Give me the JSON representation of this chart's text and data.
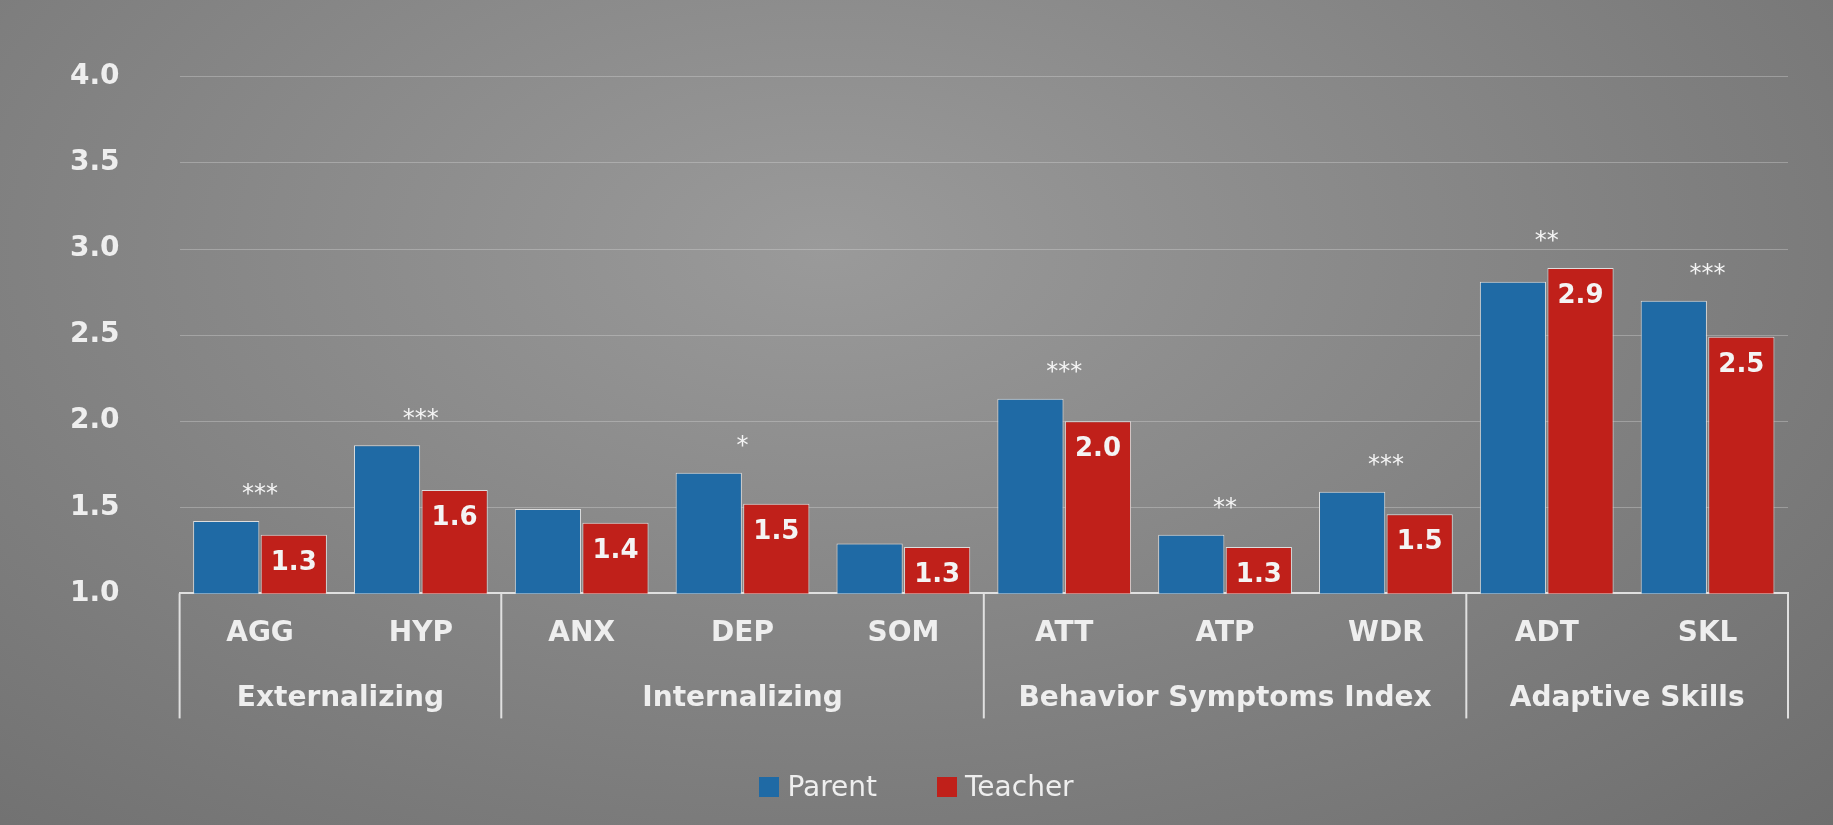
{
  "chart_data": {
    "type": "bar",
    "categories": [
      "AGG",
      "HYP",
      "ANX",
      "DEP",
      "SOM",
      "ATT",
      "ATP",
      "WDR",
      "ADT",
      "SKL"
    ],
    "series": [
      {
        "name": "Parent",
        "color": "#1f6aa5",
        "values": [
          1.42,
          1.86,
          1.49,
          1.7,
          1.29,
          2.13,
          1.34,
          1.59,
          2.81,
          2.7
        ]
      },
      {
        "name": "Teacher",
        "color": "#c0201a",
        "values": [
          1.34,
          1.6,
          1.41,
          1.52,
          1.27,
          2.0,
          1.27,
          1.46,
          2.89,
          2.49
        ],
        "value_labels": [
          "1.3",
          "1.6",
          "1.4",
          "1.5",
          "1.3",
          "2.0",
          "1.3",
          "1.5",
          "2.9",
          "2.5"
        ]
      }
    ],
    "ylim": [
      1.0,
      4.0
    ],
    "yticks": [
      {
        "value": 1,
        "label": "1.0"
      },
      {
        "value": 1.5,
        "label": "1.5"
      },
      {
        "value": 2,
        "label": "2.0"
      },
      {
        "value": 2.5,
        "label": "2.5"
      },
      {
        "value": 3,
        "label": "3.0"
      },
      {
        "value": 3.5,
        "label": "3.5"
      },
      {
        "value": 4,
        "label": "4.0"
      }
    ],
    "grid": "y",
    "legend": "bottom",
    "annotations": [
      {
        "text": "***",
        "x": "AGG",
        "y": 1.42
      },
      {
        "text": "***",
        "x": "HYP",
        "y": 1.86
      },
      {
        "text": "*",
        "x": "DEP",
        "y": 1.7
      },
      {
        "text": "***",
        "x": "ATT",
        "y": 2.13
      },
      {
        "text": "**",
        "x": "ATP",
        "y": 1.34
      },
      {
        "text": "***",
        "x": "WDR",
        "y": 1.59
      },
      {
        "text": "**",
        "x": "ADT",
        "y": 2.89
      },
      {
        "text": "***",
        "x": "SKL",
        "y": 2.7
      },
      {
        "text": "Externalizing",
        "x": "AGG"
      },
      {
        "text": "Internalizing",
        "x": "ANX"
      },
      {
        "text": "Behavior Symptoms Index",
        "x": "ATT"
      },
      {
        "text": "Adaptive Skills",
        "x": "ADT"
      }
    ]
  }
}
